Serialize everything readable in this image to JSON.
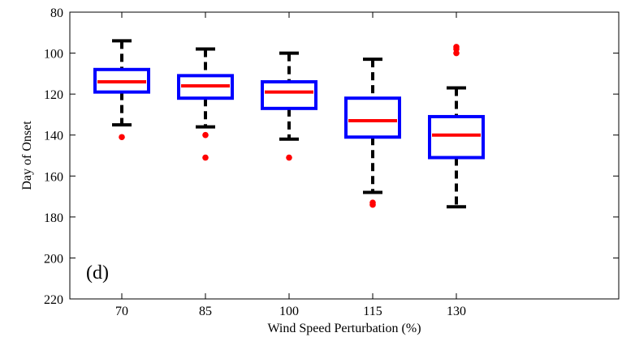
{
  "chart_data": {
    "type": "box",
    "panel_label": "(d)",
    "xlabel": "Wind Speed Perturbation (%)",
    "ylabel": "Day of Onset",
    "ylim": [
      80,
      220
    ],
    "y_reversed": true,
    "yticks": [
      "80",
      "100",
      "120",
      "140",
      "160",
      "180",
      "200",
      "220"
    ],
    "categories": [
      "70",
      "85",
      "100",
      "115",
      "130"
    ],
    "boxes": [
      {
        "whisker_low": 94,
        "q1": 108,
        "median": 114,
        "q3": 119,
        "whisker_high": 135,
        "outliers": [
          141
        ]
      },
      {
        "whisker_low": 98,
        "q1": 111,
        "median": 116,
        "q3": 122,
        "whisker_high": 136,
        "outliers": [
          140,
          151
        ]
      },
      {
        "whisker_low": 100,
        "q1": 114,
        "median": 119,
        "q3": 127,
        "whisker_high": 142,
        "outliers": [
          151
        ]
      },
      {
        "whisker_low": 103,
        "q1": 122,
        "median": 133,
        "q3": 141,
        "whisker_high": 168,
        "outliers": [
          173,
          174
        ]
      },
      {
        "whisker_low": 117,
        "q1": 131,
        "median": 140,
        "q3": 151,
        "whisker_high": 175,
        "outliers": [
          97,
          98,
          100
        ]
      }
    ],
    "colors": {
      "box": "#0000ff",
      "median": "#ff0000",
      "whisker": "#000000",
      "outlier": "#ff0000"
    },
    "grid": false
  }
}
